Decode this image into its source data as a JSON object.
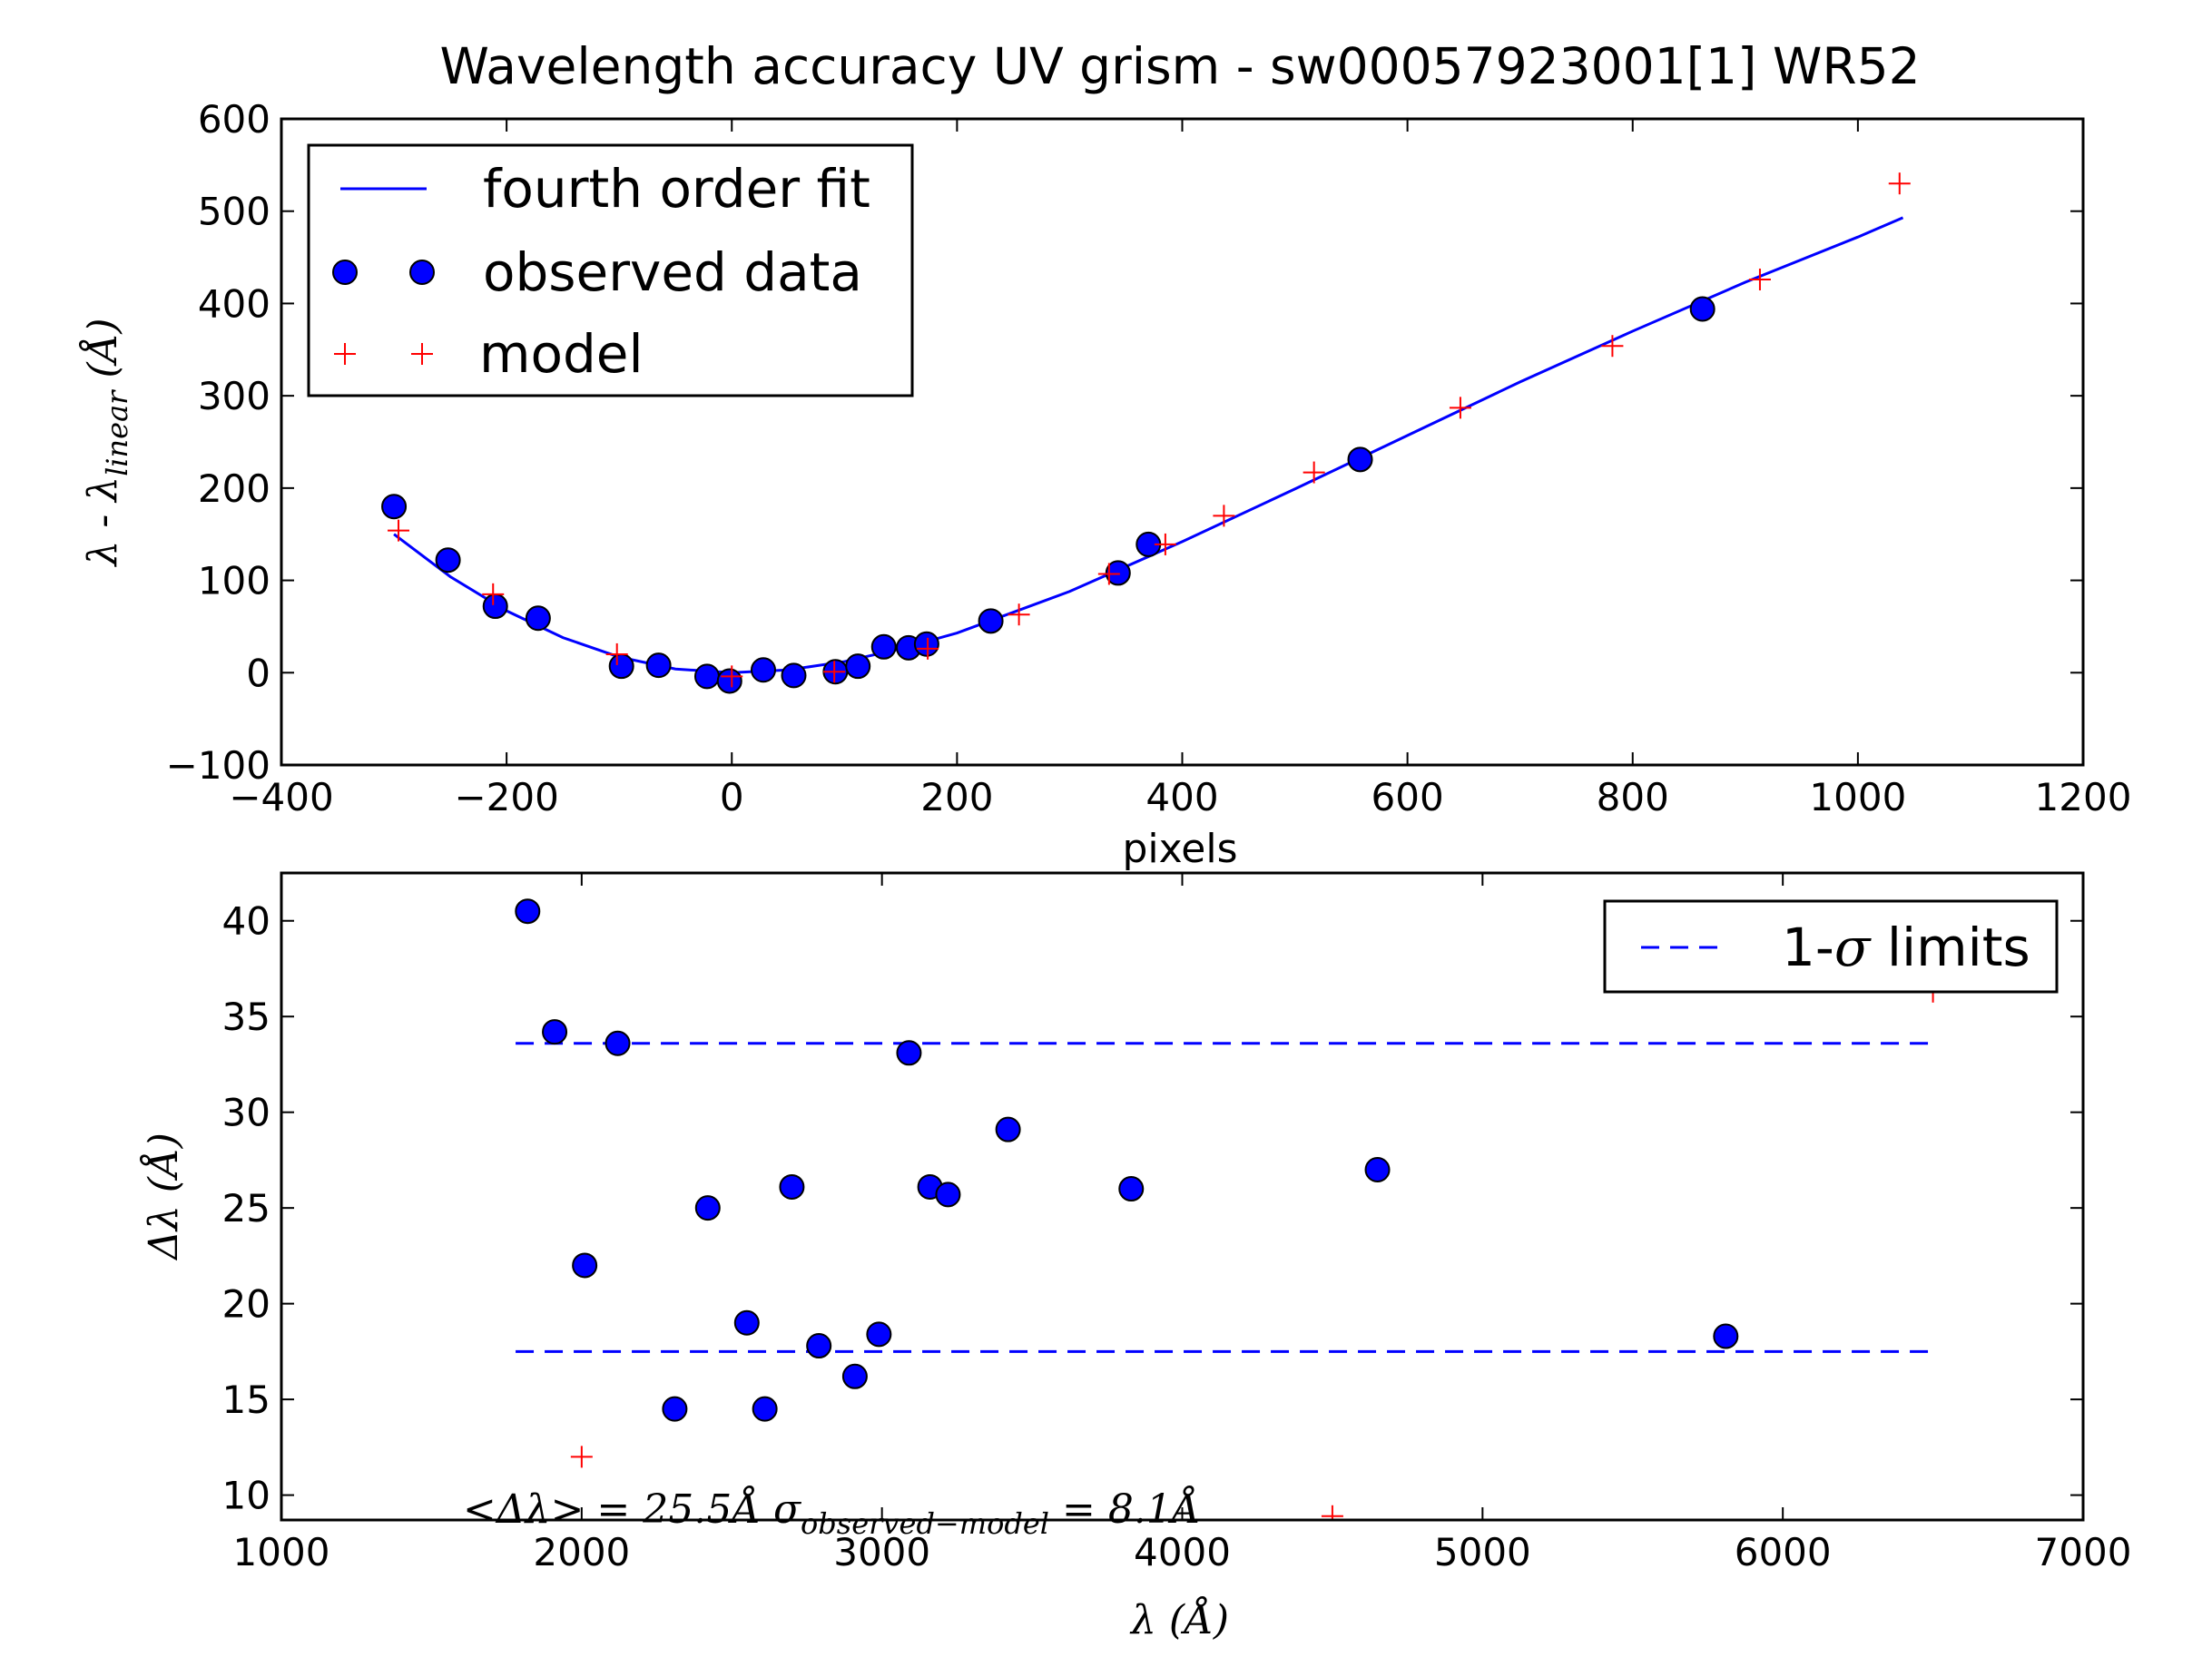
{
  "chart_data": [
    {
      "type": "line",
      "title": "Wavelength accuracy UV grism - sw00057923001[1] WR52",
      "xlabel": "pixels",
      "ylabel": "λ - λlinear (Å)",
      "xlim": [
        -400,
        1200
      ],
      "ylim": [
        -100,
        600
      ],
      "xticks": [
        -400,
        -200,
        0,
        200,
        400,
        600,
        800,
        1000,
        1200
      ],
      "yticks": [
        -100,
        0,
        100,
        200,
        300,
        400,
        500,
        600
      ],
      "xtick_labels": [
        "−400",
        "−200",
        "0",
        "200",
        "400",
        "600",
        "800",
        "1000",
        "1200"
      ],
      "ytick_labels": [
        "−100",
        "0",
        "100",
        "200",
        "300",
        "400",
        "500",
        "600"
      ],
      "legend_position": "upper-left",
      "legend": [
        "fourth order fit",
        "observed data",
        "model"
      ],
      "series": [
        {
          "name": "fourth order fit",
          "kind": "line",
          "color": "#0000ff",
          "x": [
            -300,
            -250,
            -200,
            -150,
            -100,
            -50,
            0,
            50,
            100,
            150,
            200,
            300,
            400,
            500,
            600,
            700,
            800,
            900,
            1000,
            1040
          ],
          "y": [
            150,
            104,
            67,
            38,
            17,
            4,
            0,
            3,
            12,
            26,
            43,
            88,
            142,
            199,
            257,
            315,
            370,
            423,
            472,
            493
          ]
        },
        {
          "name": "observed data",
          "kind": "marker-circle",
          "color": "#0000ff",
          "x": [
            -300,
            -252,
            -210,
            -172,
            -98,
            -65,
            -22,
            -2,
            28,
            55,
            92,
            112,
            135,
            157,
            173,
            230,
            343,
            370,
            558,
            862
          ],
          "y": [
            180,
            122,
            72,
            59,
            7,
            8,
            -4,
            -9,
            3,
            -3,
            1,
            7,
            28,
            27,
            31,
            56,
            108,
            139,
            231,
            394
          ]
        },
        {
          "name": "model",
          "kind": "marker-plus",
          "color": "#ff0000",
          "x": [
            -296,
            -212,
            -102,
            0,
            91,
            174,
            255,
            335,
            385,
            437,
            517,
            647,
            782,
            913,
            1037
          ],
          "y": [
            154,
            85,
            20,
            -4,
            1,
            26,
            63,
            107,
            139,
            170,
            217,
            287,
            354,
            426,
            530
          ]
        }
      ]
    },
    {
      "type": "scatter",
      "xlabel": "λ (Å)",
      "ylabel": "Δλ (Å)",
      "xlim": [
        1000,
        7000
      ],
      "ylim": [
        8.7,
        42.5
      ],
      "xticks": [
        1000,
        2000,
        3000,
        4000,
        5000,
        6000,
        7000
      ],
      "yticks": [
        10,
        15,
        20,
        25,
        30,
        35,
        40
      ],
      "xtick_labels": [
        "1000",
        "2000",
        "3000",
        "4000",
        "5000",
        "6000",
        "7000"
      ],
      "ytick_labels": [
        "10",
        "15",
        "20",
        "25",
        "30",
        "35",
        "40"
      ],
      "legend_position": "upper-right",
      "legend": [
        "1-σ limits"
      ],
      "annotation": "<Δλ> = 25.5Å   σobserved−model = 8.1Å",
      "series": [
        {
          "name": "1-σ limits",
          "kind": "dashed-line",
          "color": "#0000ff",
          "lines": [
            {
              "x": [
                1780,
                6500
              ],
              "y": [
                33.6,
                33.6
              ]
            },
            {
              "x": [
                1780,
                6500
              ],
              "y": [
                17.5,
                17.5
              ]
            }
          ]
        },
        {
          "kind": "marker-circle",
          "color": "#0000ff",
          "x": [
            1820,
            1910,
            2010,
            2120,
            2310,
            2420,
            2550,
            2610,
            2700,
            2790,
            2910,
            2990,
            3090,
            3160,
            3220,
            3420,
            3830,
            4650,
            5810
          ],
          "y": [
            40.5,
            34.2,
            22.0,
            33.6,
            14.5,
            25.0,
            19.0,
            14.5,
            26.1,
            17.8,
            16.2,
            18.4,
            33.1,
            26.1,
            25.7,
            29.1,
            26.0,
            27.0,
            18.3
          ]
        },
        {
          "kind": "marker-plus",
          "color": "#ff0000",
          "x": [
            2000,
            4500,
            6500
          ],
          "y": [
            12.0,
            8.9,
            36.3
          ]
        }
      ]
    }
  ]
}
